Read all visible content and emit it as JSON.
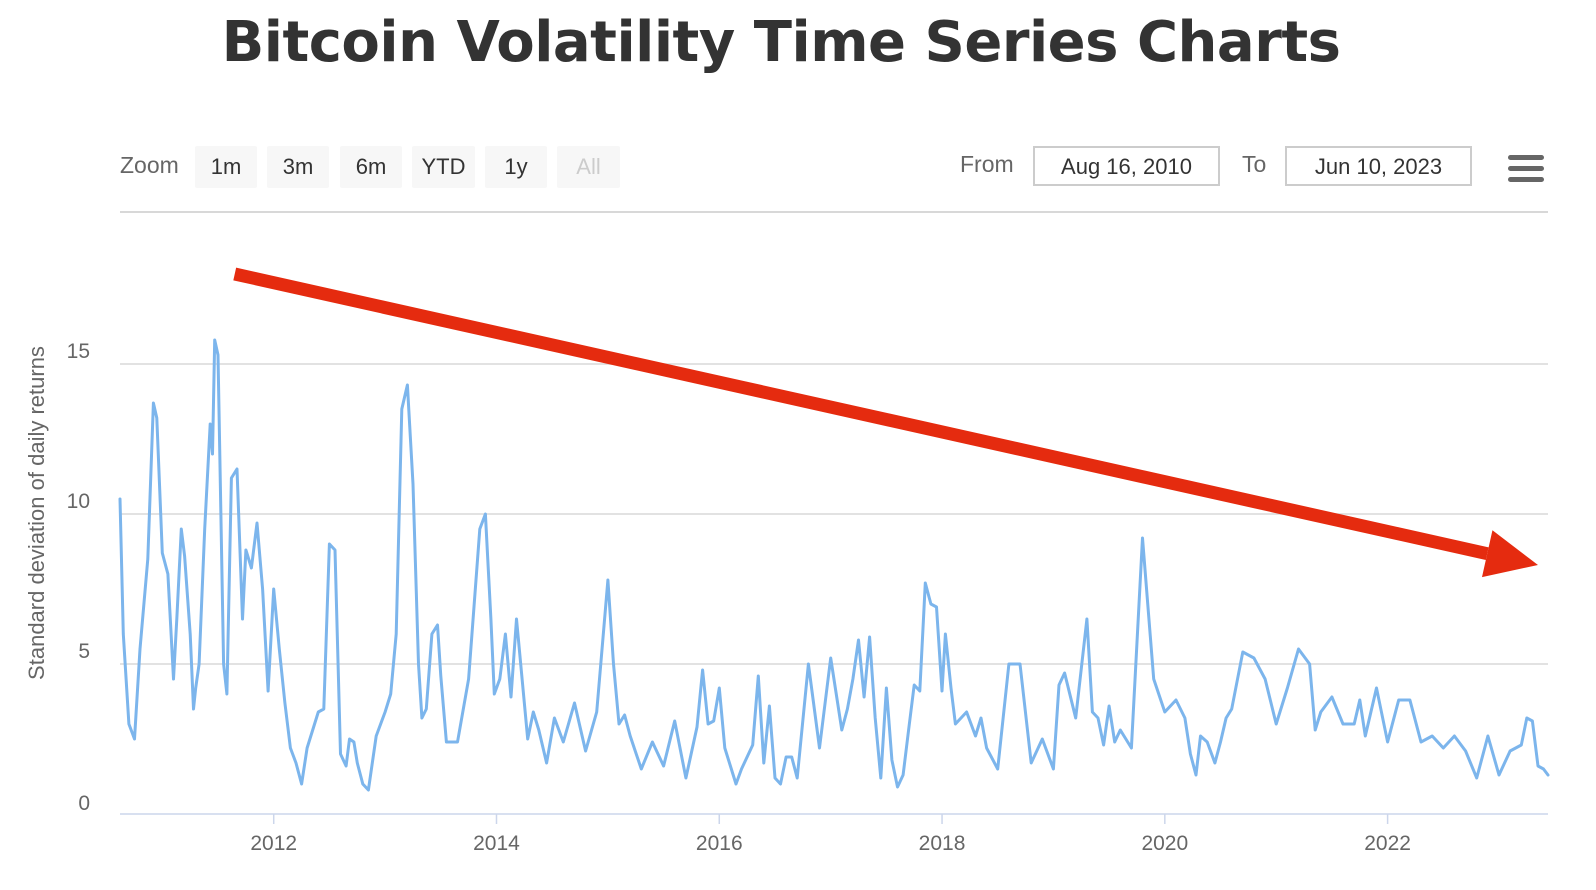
{
  "title": "Bitcoin Volatility Time Series Charts",
  "range_selector": {
    "zoom_label": "Zoom",
    "buttons": [
      "1m",
      "3m",
      "6m",
      "YTD",
      "1y",
      "All"
    ],
    "active": "All",
    "from_label": "From",
    "from_value": "Aug 16, 2010",
    "to_label": "To",
    "to_value": "Jun 10, 2023"
  },
  "colors": {
    "line": "#7cb5ec",
    "arrow": "#e52b0f",
    "grid": "#d8d8d8",
    "text": "#666666"
  },
  "chart_data": {
    "type": "line",
    "title": "Bitcoin Volatility Time Series Charts",
    "xlabel": "",
    "ylabel": "Standard deviation of daily returns",
    "xlim": [
      2010.62,
      2023.44
    ],
    "ylim": [
      0,
      20
    ],
    "y_ticks": [
      0,
      5,
      10,
      15
    ],
    "x_ticks": [
      2012,
      2014,
      2016,
      2018,
      2020,
      2022
    ],
    "grid": true,
    "legend": "none",
    "annotations": [
      {
        "type": "arrow",
        "from": [
          2011.65,
          18.0
        ],
        "to": [
          2023.35,
          8.3
        ],
        "note": "downward trend"
      }
    ],
    "series": [
      {
        "name": "Bitcoin volatility",
        "x": [
          2010.62,
          2010.65,
          2010.7,
          2010.75,
          2010.8,
          2010.87,
          2010.92,
          2010.95,
          2011.0,
          2011.05,
          2011.1,
          2011.13,
          2011.17,
          2011.2,
          2011.25,
          2011.28,
          2011.3,
          2011.33,
          2011.38,
          2011.43,
          2011.45,
          2011.47,
          2011.5,
          2011.55,
          2011.58,
          2011.62,
          2011.67,
          2011.72,
          2011.75,
          2011.8,
          2011.85,
          2011.9,
          2011.95,
          2012.0,
          2012.05,
          2012.1,
          2012.15,
          2012.2,
          2012.25,
          2012.3,
          2012.4,
          2012.45,
          2012.5,
          2012.55,
          2012.6,
          2012.65,
          2012.68,
          2012.72,
          2012.75,
          2012.8,
          2012.85,
          2012.92,
          2013.0,
          2013.05,
          2013.1,
          2013.15,
          2013.2,
          2013.25,
          2013.3,
          2013.33,
          2013.37,
          2013.42,
          2013.47,
          2013.5,
          2013.55,
          2013.65,
          2013.75,
          2013.8,
          2013.85,
          2013.9,
          2013.95,
          2013.98,
          2014.03,
          2014.08,
          2014.13,
          2014.18,
          2014.23,
          2014.28,
          2014.33,
          2014.38,
          2014.45,
          2014.52,
          2014.6,
          2014.7,
          2014.8,
          2014.9,
          2015.0,
          2015.05,
          2015.1,
          2015.15,
          2015.2,
          2015.3,
          2015.4,
          2015.5,
          2015.6,
          2015.7,
          2015.8,
          2015.85,
          2015.9,
          2015.95,
          2016.0,
          2016.05,
          2016.1,
          2016.15,
          2016.2,
          2016.3,
          2016.35,
          2016.4,
          2016.45,
          2016.5,
          2016.55,
          2016.6,
          2016.65,
          2016.7,
          2016.8,
          2016.9,
          2017.0,
          2017.1,
          2017.15,
          2017.2,
          2017.25,
          2017.3,
          2017.35,
          2017.4,
          2017.45,
          2017.5,
          2017.55,
          2017.6,
          2017.65,
          2017.7,
          2017.75,
          2017.8,
          2017.85,
          2017.9,
          2017.95,
          2018.0,
          2018.03,
          2018.08,
          2018.12,
          2018.17,
          2018.22,
          2018.3,
          2018.35,
          2018.4,
          2018.5,
          2018.6,
          2018.7,
          2018.8,
          2018.9,
          2019.0,
          2019.05,
          2019.1,
          2019.2,
          2019.3,
          2019.35,
          2019.4,
          2019.45,
          2019.5,
          2019.55,
          2019.6,
          2019.7,
          2019.8,
          2019.9,
          2020.0,
          2020.1,
          2020.18,
          2020.23,
          2020.28,
          2020.32,
          2020.38,
          2020.45,
          2020.5,
          2020.55,
          2020.6,
          2020.7,
          2020.8,
          2020.9,
          2021.0,
          2021.1,
          2021.2,
          2021.3,
          2021.35,
          2021.4,
          2021.5,
          2021.6,
          2021.7,
          2021.75,
          2021.8,
          2021.9,
          2022.0,
          2022.1,
          2022.2,
          2022.3,
          2022.4,
          2022.5,
          2022.6,
          2022.7,
          2022.8,
          2022.9,
          2023.0,
          2023.1,
          2023.2,
          2023.25,
          2023.3,
          2023.35,
          2023.4,
          2023.44
        ],
        "values": [
          10.5,
          6.0,
          3.0,
          2.5,
          5.5,
          8.5,
          13.7,
          13.2,
          8.7,
          8.0,
          4.5,
          6.5,
          9.5,
          8.6,
          6.0,
          3.5,
          4.2,
          5.0,
          9.5,
          13.0,
          12.0,
          15.8,
          15.3,
          5.0,
          4.0,
          11.2,
          11.5,
          6.5,
          8.8,
          8.2,
          9.7,
          7.5,
          4.1,
          7.5,
          5.5,
          3.7,
          2.2,
          1.7,
          1.0,
          2.2,
          3.4,
          3.5,
          9.0,
          8.8,
          2.0,
          1.6,
          2.5,
          2.4,
          1.7,
          1.0,
          0.8,
          2.6,
          3.4,
          4.0,
          6.0,
          13.5,
          14.3,
          11.0,
          5.0,
          3.2,
          3.5,
          6.0,
          6.3,
          4.6,
          2.4,
          2.4,
          4.5,
          7.0,
          9.5,
          10.0,
          6.5,
          4.0,
          4.5,
          6.0,
          3.9,
          6.5,
          4.5,
          2.5,
          3.4,
          2.8,
          1.7,
          3.2,
          2.4,
          3.7,
          2.1,
          3.4,
          7.8,
          5.0,
          3.0,
          3.3,
          2.6,
          1.5,
          2.4,
          1.6,
          3.1,
          1.2,
          2.9,
          4.8,
          3.0,
          3.1,
          4.2,
          2.2,
          1.6,
          1.0,
          1.5,
          2.3,
          4.6,
          1.7,
          3.6,
          1.2,
          1.0,
          1.9,
          1.9,
          1.2,
          5.0,
          2.2,
          5.2,
          2.8,
          3.5,
          4.5,
          5.8,
          3.9,
          5.9,
          3.2,
          1.2,
          4.2,
          1.8,
          0.9,
          1.3,
          2.8,
          4.3,
          4.1,
          7.7,
          7.0,
          6.9,
          4.1,
          6.0,
          4.2,
          3.0,
          3.2,
          3.4,
          2.6,
          3.2,
          2.2,
          1.5,
          5.0,
          5.0,
          1.7,
          2.5,
          1.5,
          4.3,
          4.7,
          3.2,
          6.5,
          3.4,
          3.2,
          2.3,
          3.6,
          2.4,
          2.8,
          2.2,
          9.2,
          4.5,
          3.4,
          3.8,
          3.2,
          2.0,
          1.3,
          2.6,
          2.4,
          1.7,
          2.4,
          3.2,
          3.5,
          5.4,
          5.2,
          4.5,
          3.0,
          4.2,
          5.5,
          5.0,
          2.8,
          3.4,
          3.9,
          3.0,
          3.0,
          3.8,
          2.6,
          4.2,
          2.4,
          3.8,
          3.8,
          2.4,
          2.6,
          2.2,
          2.6,
          2.1,
          1.2,
          2.6,
          1.3,
          2.1,
          2.3,
          3.2,
          3.1,
          1.6,
          1.5,
          1.3
        ]
      }
    ]
  }
}
